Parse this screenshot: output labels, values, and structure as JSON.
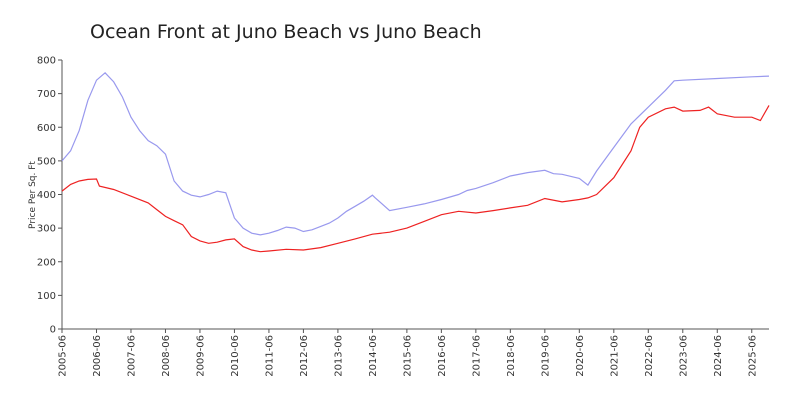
{
  "chart_data": {
    "type": "line",
    "title": "Ocean Front at Juno Beach vs Juno Beach",
    "ylabel": "Price Per Sq. Ft",
    "xlim": [
      "2005-06",
      "2025-12"
    ],
    "xticks": [
      "2005-06",
      "2006-06",
      "2007-06",
      "2008-06",
      "2009-06",
      "2010-06",
      "2011-06",
      "2012-06",
      "2013-06",
      "2014-06",
      "2015-06",
      "2016-06",
      "2017-06",
      "2018-06",
      "2019-06",
      "2020-06",
      "2021-06",
      "2022-06",
      "2023-06",
      "2024-06",
      "2025-06"
    ],
    "ylim": [
      0,
      800
    ],
    "yticks": [
      0,
      100,
      200,
      300,
      400,
      500,
      600,
      700,
      800
    ],
    "series": [
      {
        "color": "#9999ee",
        "x": [
          "2005-06",
          "2005-09",
          "2005-12",
          "2006-03",
          "2006-06",
          "2006-09",
          "2006-12",
          "2007-03",
          "2007-06",
          "2007-09",
          "2007-12",
          "2008-03",
          "2008-06",
          "2008-09",
          "2008-12",
          "2009-03",
          "2009-06",
          "2009-09",
          "2009-12",
          "2010-03",
          "2010-06",
          "2010-09",
          "2010-12",
          "2011-03",
          "2011-06",
          "2011-09",
          "2011-12",
          "2012-03",
          "2012-06",
          "2012-09",
          "2012-12",
          "2013-03",
          "2013-06",
          "2013-09",
          "2013-12",
          "2014-03",
          "2014-06",
          "2014-07",
          "2014-12",
          "2015-06",
          "2015-12",
          "2016-06",
          "2016-12",
          "2017-03",
          "2017-06",
          "2017-12",
          "2018-06",
          "2018-12",
          "2019-06",
          "2019-09",
          "2019-12",
          "2020-06",
          "2020-09",
          "2020-12",
          "2021-06",
          "2021-12",
          "2022-06",
          "2022-12",
          "2023-03",
          "2023-06",
          "2024-06",
          "2025-06",
          "2025-12"
        ],
        "values": [
          500,
          530,
          590,
          680,
          740,
          762,
          735,
          690,
          630,
          590,
          560,
          545,
          520,
          440,
          410,
          398,
          393,
          400,
          410,
          405,
          330,
          300,
          285,
          280,
          285,
          293,
          303,
          300,
          290,
          295,
          305,
          315,
          330,
          350,
          365,
          380,
          398,
          390,
          352,
          362,
          372,
          385,
          400,
          412,
          418,
          435,
          455,
          465,
          472,
          462,
          460,
          448,
          428,
          470,
          540,
          610,
          660,
          710,
          738,
          740,
          745,
          750,
          752
        ]
      },
      {
        "color": "#ee2222",
        "x": [
          "2005-06",
          "2005-09",
          "2005-12",
          "2006-03",
          "2006-06",
          "2006-07",
          "2006-12",
          "2007-06",
          "2007-12",
          "2008-03",
          "2008-06",
          "2008-09",
          "2008-12",
          "2009-03",
          "2009-06",
          "2009-09",
          "2009-12",
          "2010-03",
          "2010-06",
          "2010-09",
          "2010-12",
          "2011-03",
          "2011-06",
          "2011-12",
          "2012-06",
          "2012-12",
          "2013-06",
          "2013-12",
          "2014-06",
          "2014-12",
          "2015-06",
          "2015-12",
          "2016-06",
          "2016-12",
          "2017-06",
          "2017-12",
          "2018-06",
          "2018-12",
          "2019-06",
          "2019-12",
          "2020-06",
          "2020-09",
          "2020-12",
          "2021-06",
          "2021-12",
          "2022-03",
          "2022-06",
          "2022-12",
          "2023-03",
          "2023-06",
          "2023-12",
          "2024-03",
          "2024-06",
          "2024-12",
          "2025-06",
          "2025-09",
          "2025-12"
        ],
        "values": [
          410,
          430,
          440,
          445,
          446,
          425,
          415,
          395,
          375,
          355,
          335,
          322,
          310,
          275,
          262,
          255,
          258,
          265,
          268,
          245,
          235,
          230,
          232,
          237,
          235,
          242,
          255,
          268,
          282,
          288,
          300,
          320,
          340,
          350,
          345,
          352,
          360,
          368,
          388,
          378,
          385,
          390,
          400,
          450,
          530,
          600,
          630,
          655,
          660,
          648,
          650,
          660,
          640,
          630,
          630,
          620,
          665
        ]
      }
    ]
  }
}
